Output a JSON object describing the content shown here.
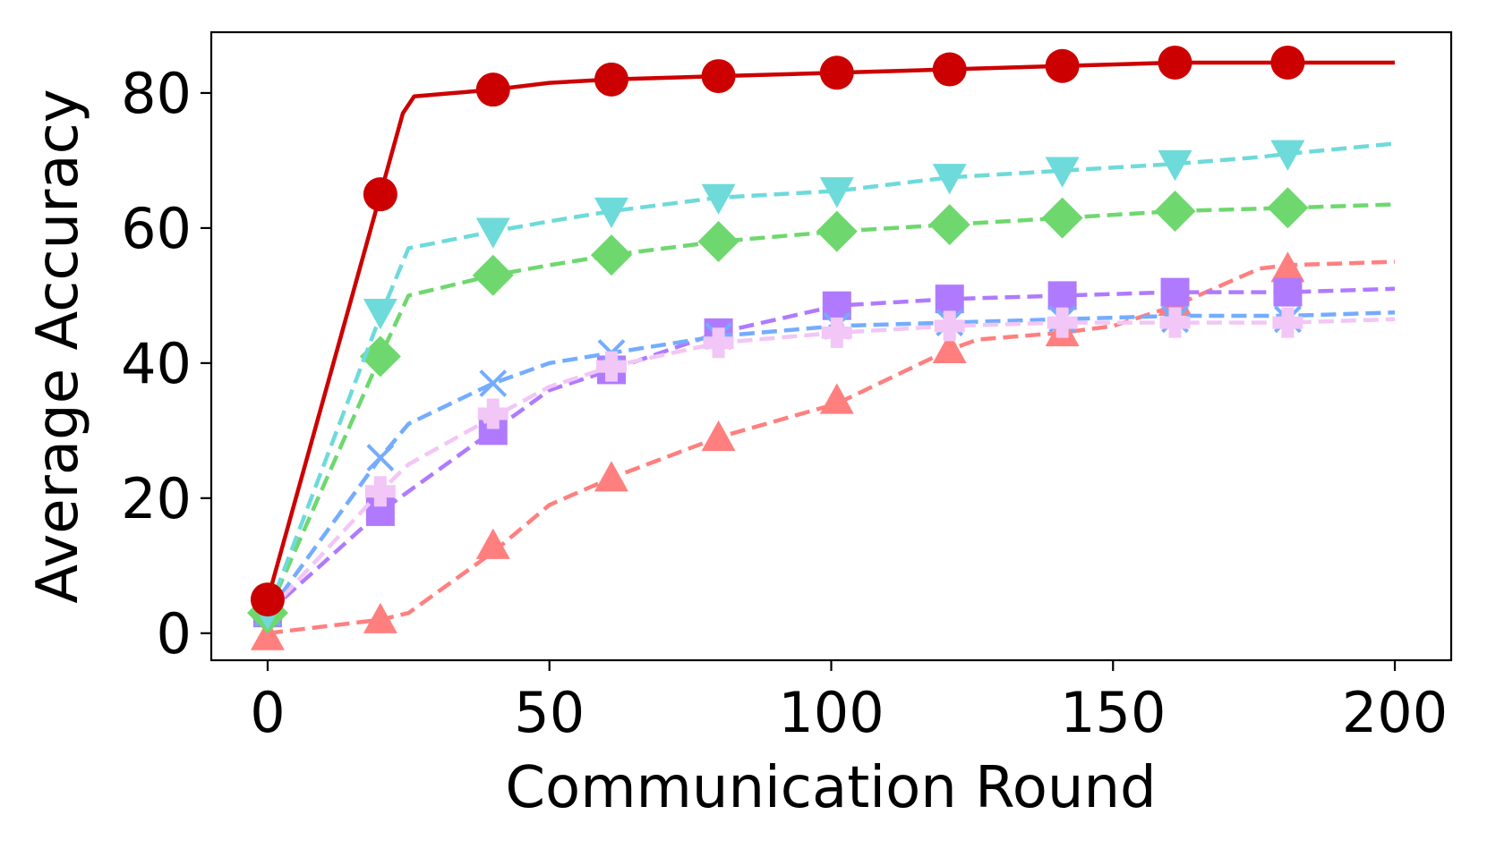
{
  "chart_data": {
    "type": "line",
    "title": "",
    "xlabel": "Communication Round",
    "ylabel": "Average Accuracy",
    "xlim": [
      -10,
      210
    ],
    "ylim": [
      -4,
      89
    ],
    "xticks": [
      0,
      50,
      100,
      150,
      200
    ],
    "yticks": [
      0,
      20,
      40,
      60,
      80
    ],
    "grid": false,
    "legend": "none",
    "series": [
      {
        "color": "#ff7f7f",
        "marker": "triangle-up",
        "dash": true,
        "line_x": [
          0,
          20,
          25,
          40,
          50,
          61,
          80,
          101,
          121,
          126,
          141,
          150,
          161,
          176,
          181,
          200
        ],
        "line_y": [
          0,
          2,
          3,
          12,
          19,
          23,
          29,
          34,
          42,
          43.5,
          44.5,
          45.5,
          48.5,
          54,
          54.5,
          55
        ],
        "x": [
          0,
          20,
          40,
          61,
          80,
          101,
          121,
          141,
          161,
          181
        ],
        "y": [
          -0.5,
          2,
          13,
          23,
          29,
          34.5,
          42,
          44.5,
          49,
          54
        ]
      },
      {
        "color": "#b07aff",
        "marker": "square",
        "dash": true,
        "line_x": [
          0,
          20,
          40,
          50,
          61,
          80,
          101,
          121,
          141,
          161,
          181,
          200
        ],
        "line_y": [
          3,
          18,
          30,
          36,
          39,
          44.5,
          48.5,
          49.5,
          50,
          50.5,
          50.5,
          51
        ],
        "x": [
          0,
          20,
          40,
          61,
          80,
          101,
          121,
          141,
          161,
          181
        ],
        "y": [
          3,
          18,
          30,
          39,
          44.5,
          48.5,
          49.5,
          50,
          50.5,
          50.5
        ]
      },
      {
        "color": "#74acff",
        "marker": "x",
        "dash": true,
        "line_x": [
          0,
          20,
          25,
          40,
          50,
          61,
          80,
          101,
          121,
          141,
          161,
          181,
          200
        ],
        "line_y": [
          3,
          26,
          31,
          37,
          40,
          41.5,
          44,
          45.5,
          46,
          46.5,
          47,
          47,
          47.5
        ],
        "x": [
          0,
          20,
          40,
          61,
          80,
          101,
          121,
          141,
          161,
          181
        ],
        "y": [
          3,
          26,
          37,
          41.5,
          44,
          45.5,
          46,
          46.5,
          46.5,
          46.5
        ]
      },
      {
        "color": "#f2c6f6",
        "marker": "plus",
        "dash": true,
        "line_x": [
          0,
          20,
          25,
          40,
          50,
          61,
          80,
          101,
          121,
          141,
          161,
          181,
          200
        ],
        "line_y": [
          3,
          21,
          25,
          32,
          36.5,
          39.5,
          43,
          44.5,
          45.5,
          46,
          46,
          46,
          46.5
        ],
        "x": [
          0,
          20,
          40,
          61,
          80,
          101,
          121,
          141,
          161,
          181
        ],
        "y": [
          3,
          21,
          32.5,
          39.5,
          43,
          44.5,
          45.5,
          46,
          46,
          46
        ]
      },
      {
        "color": "#6ed86e",
        "marker": "diamond",
        "dash": true,
        "line_x": [
          0,
          20,
          25,
          40,
          50,
          61,
          80,
          101,
          121,
          141,
          161,
          181,
          200
        ],
        "line_y": [
          3,
          41,
          50,
          53,
          54.5,
          56,
          58,
          59.5,
          60.5,
          61.5,
          62.5,
          63,
          63.5
        ],
        "x": [
          0,
          20,
          40,
          61,
          80,
          101,
          121,
          141,
          161,
          181
        ],
        "y": [
          3,
          41,
          53,
          56,
          58,
          59.5,
          60.5,
          61.5,
          62.5,
          63
        ]
      },
      {
        "color": "#6edada",
        "marker": "triangle-down",
        "dash": true,
        "line_x": [
          0,
          20,
          25,
          40,
          50,
          61,
          80,
          101,
          121,
          141,
          161,
          176,
          181,
          200
        ],
        "line_y": [
          3,
          47,
          57,
          59.5,
          61,
          62.5,
          64.5,
          65.5,
          67.5,
          68.5,
          69.5,
          70.5,
          71,
          72.5
        ],
        "x": [
          0,
          20,
          40,
          61,
          80,
          101,
          121,
          141,
          161,
          181
        ],
        "y": [
          3,
          47.5,
          59.5,
          62.5,
          64.5,
          65.5,
          67.5,
          68.5,
          69.5,
          71
        ]
      },
      {
        "color": "#cc0000",
        "marker": "circle",
        "dash": false,
        "line_x": [
          0,
          20,
          24,
          26,
          40,
          50,
          61,
          80,
          101,
          121,
          141,
          161,
          181,
          200
        ],
        "line_y": [
          5,
          65,
          77,
          79.5,
          80.5,
          81.5,
          82,
          82.5,
          83,
          83.5,
          84,
          84.5,
          84.5,
          84.5
        ],
        "x": [
          0,
          20,
          40,
          61,
          80,
          101,
          121,
          141,
          161,
          181
        ],
        "y": [
          5,
          65,
          80.5,
          82,
          82.5,
          83,
          83.5,
          84,
          84.5,
          84.5
        ]
      }
    ]
  }
}
